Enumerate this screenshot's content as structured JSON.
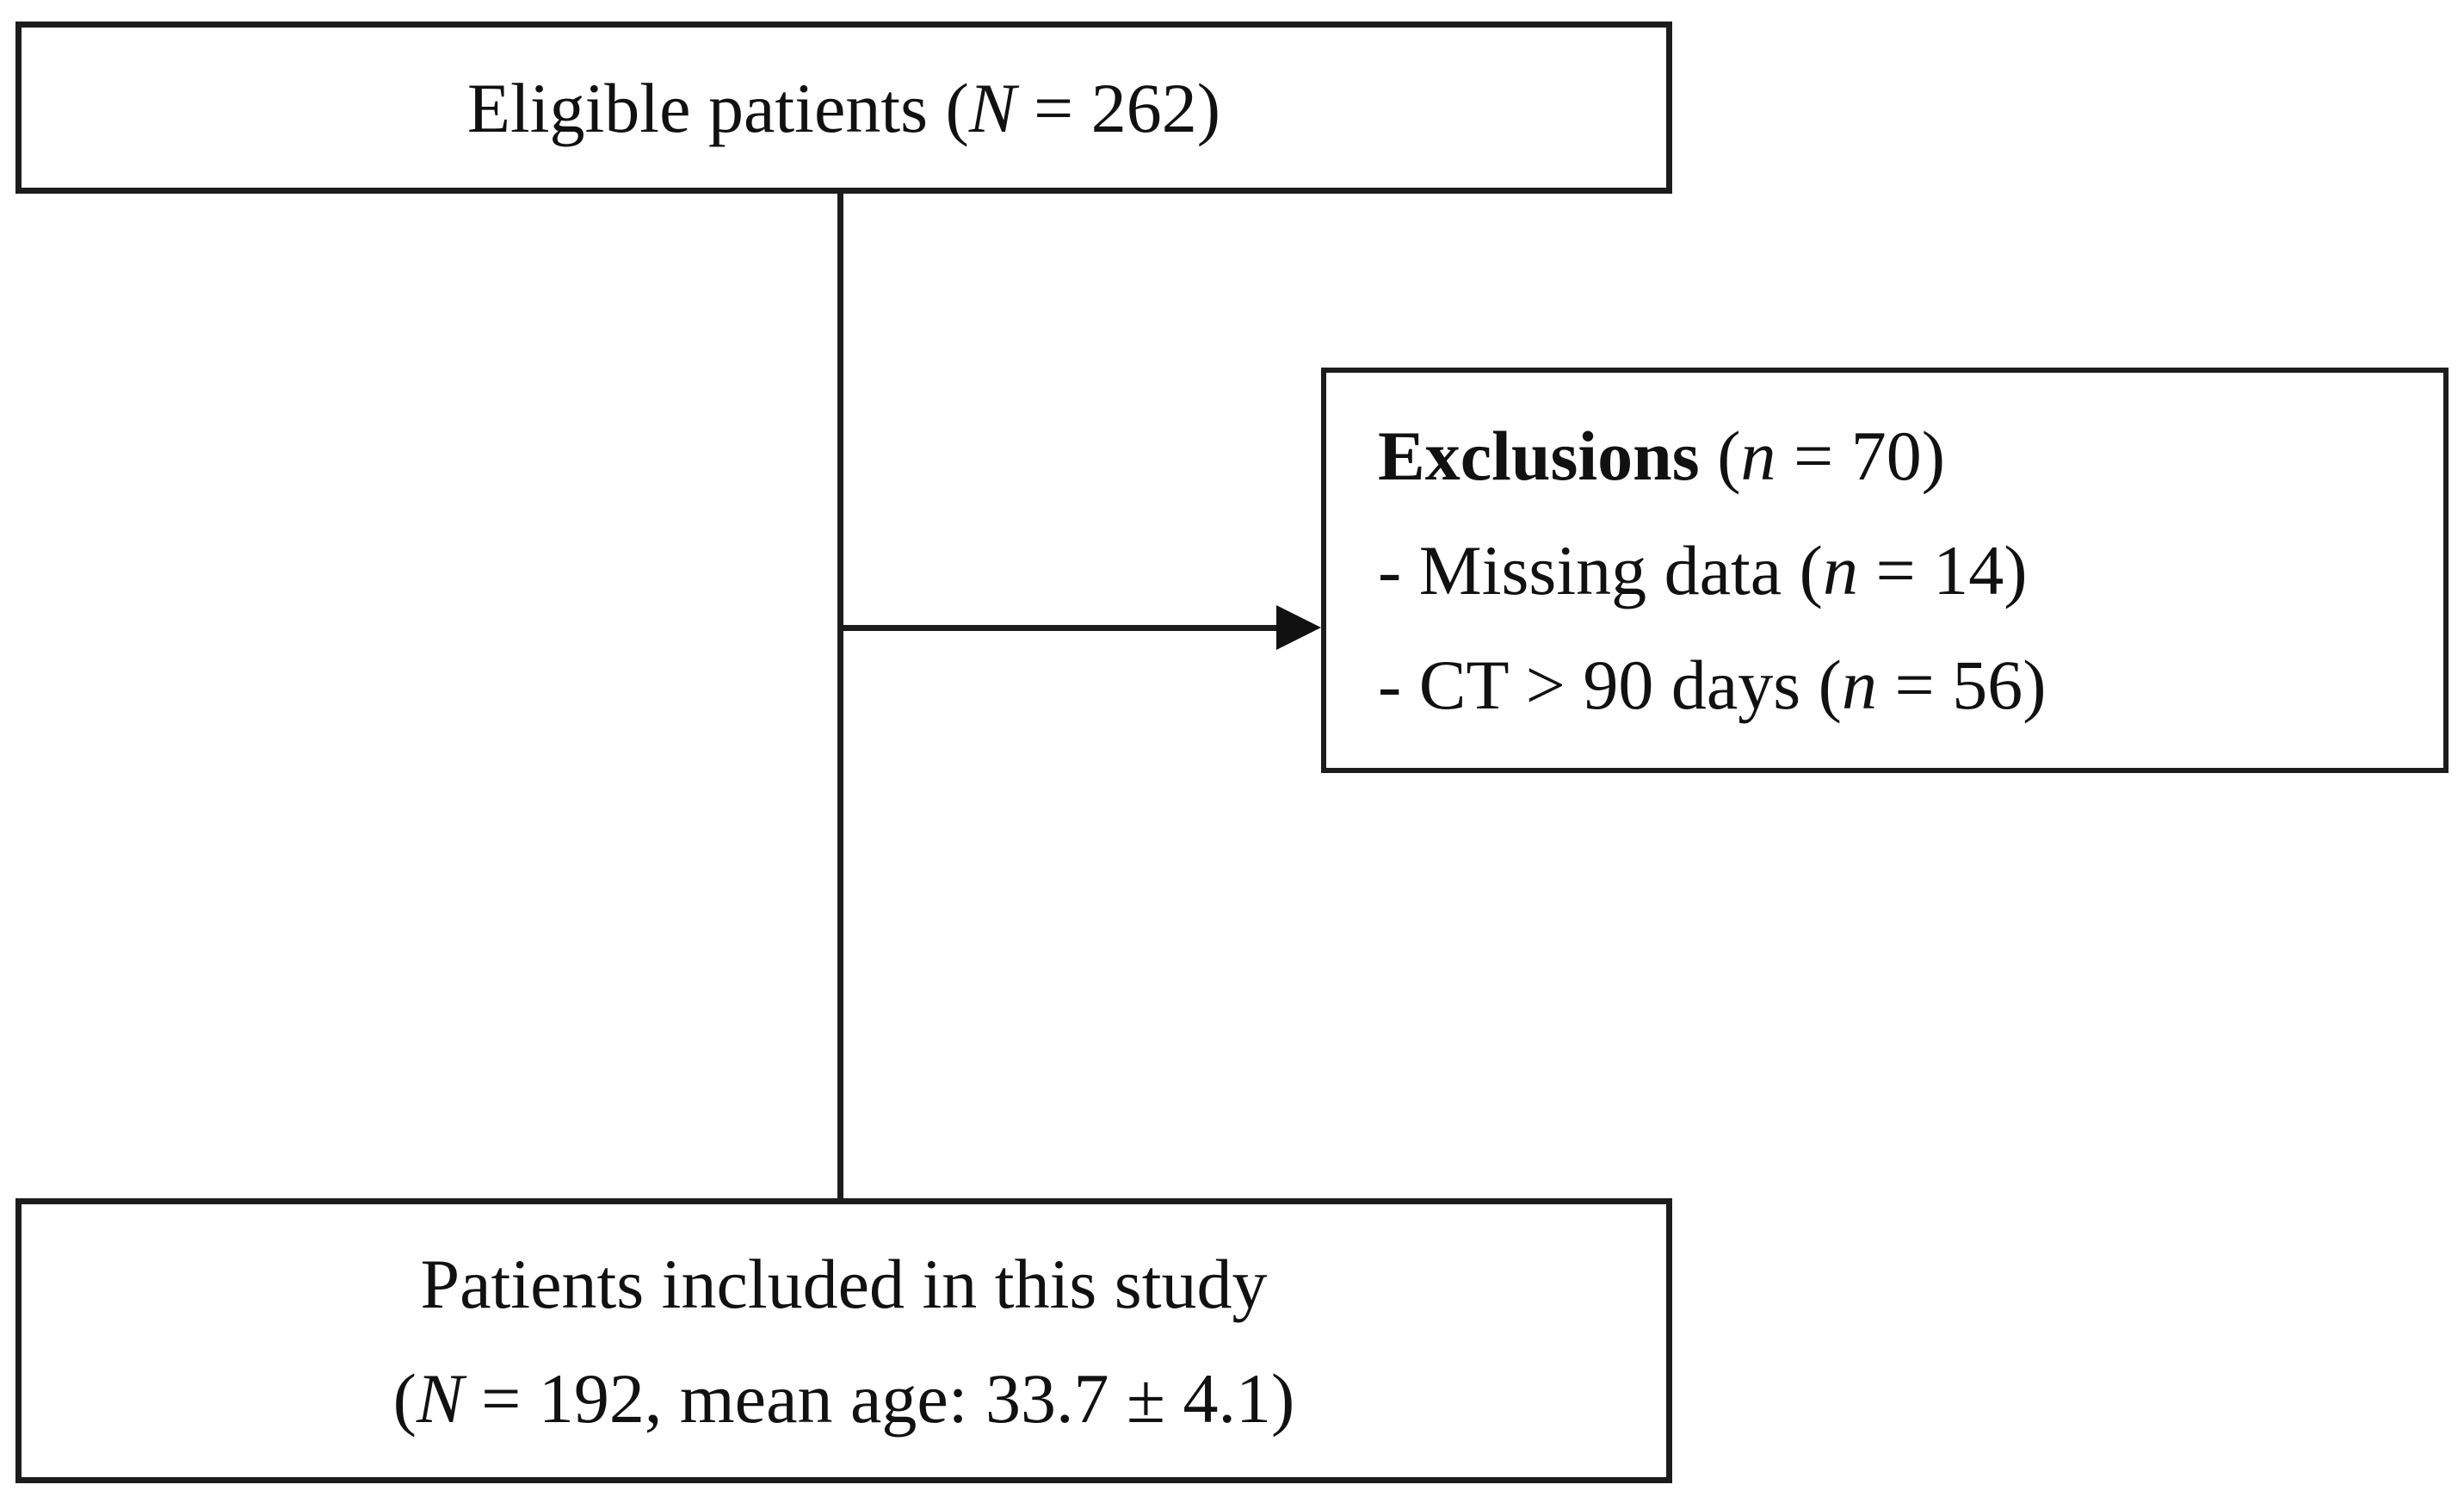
{
  "diagram": {
    "background_color": "#ffffff",
    "stroke_color": "#1c1c1c",
    "text_color": "#111111",
    "arrowhead_icon": "filled-right-triangle"
  },
  "top_box": {
    "pre": "Eligible patients (",
    "var": "N",
    "post": " = 262)"
  },
  "exclusions_box": {
    "title_bold": "Exclusions",
    "title_pre": " (",
    "title_var": "n",
    "title_post": " = 70)",
    "items": [
      {
        "pre": "- Missing data (",
        "var": "n",
        "post": " = 14)"
      },
      {
        "pre": "- CT > 90 days (",
        "var": "n",
        "post": " = 56)"
      }
    ]
  },
  "bottom_box": {
    "line1": "Patients included in this study",
    "line2_pre": "(",
    "line2_var": "N",
    "line2_post": " = 192, mean age: 33.7 ± 4.1)"
  }
}
